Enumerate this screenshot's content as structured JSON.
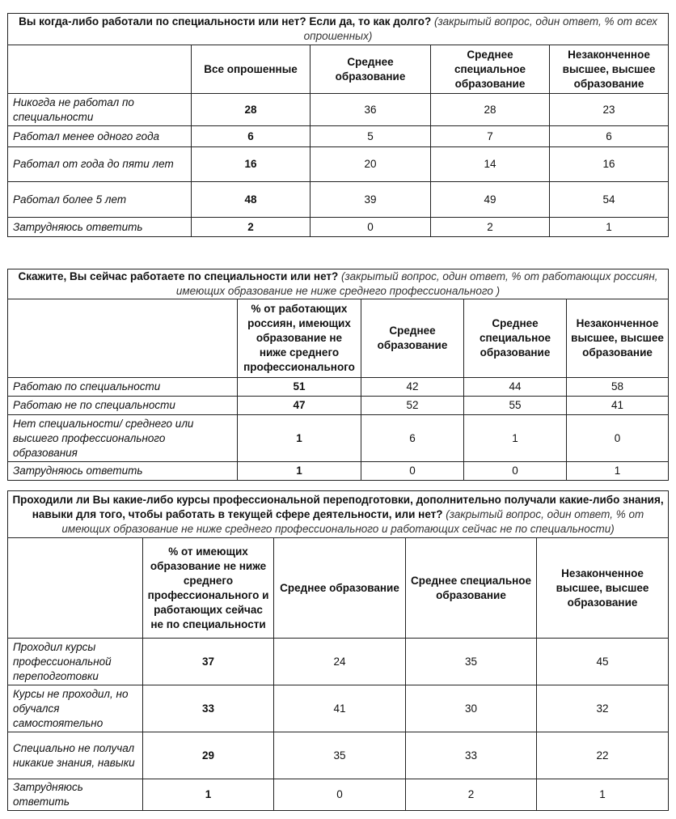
{
  "tables": [
    {
      "question": "Вы когда-либо работали по специальности или нет? Если да, то как долго?",
      "note": "(закрытый вопрос, один ответ, % от всех опрошенных)",
      "columns": [
        "",
        "Все опрошенные",
        "Среднее образование",
        "Среднее специальное образование",
        "Незаконченное высшее, высшее образование"
      ],
      "rows": [
        {
          "label": "Никогда не работал по специальности",
          "values": [
            "28",
            "36",
            "28",
            "23"
          ]
        },
        {
          "label": "Работал менее одного года",
          "values": [
            "6",
            "5",
            "7",
            "6"
          ]
        },
        {
          "label": "Работал от года до пяти лет",
          "values": [
            "16",
            "20",
            "14",
            "16"
          ]
        },
        {
          "label": "Работал более 5 лет",
          "values": [
            "48",
            "39",
            "49",
            "54"
          ]
        },
        {
          "label": "Затрудняюсь ответить",
          "values": [
            "2",
            "0",
            "2",
            "1"
          ]
        }
      ]
    },
    {
      "question": "Скажите, Вы сейчас работаете по специальности или нет?",
      "note": "(закрытый вопрос, один ответ, % от работающих россиян, имеющих образование не ниже среднего профессионального )",
      "columns": [
        "",
        "% от работающих россиян, имеющих образование не ниже среднего профессионального",
        "Среднее образование",
        "Среднее специальное образование",
        "Незаконченное высшее, высшее образование"
      ],
      "rows": [
        {
          "label": "Работаю по специальности",
          "values": [
            "51",
            "42",
            "44",
            "58"
          ]
        },
        {
          "label": "Работаю не по специальности",
          "values": [
            "47",
            "52",
            "55",
            "41"
          ]
        },
        {
          "label": "Нет специальности/ среднего или высшего профессионального образования",
          "values": [
            "1",
            "6",
            "1",
            "0"
          ]
        },
        {
          "label": "Затрудняюсь ответить",
          "values": [
            "1",
            "0",
            "0",
            "1"
          ]
        }
      ]
    },
    {
      "question": "Проходили ли Вы какие-либо курсы профессиональной переподготовки, дополнительно получали какие-либо знания, навыки для того, чтобы работать в текущей сфере деятельности, или нет?",
      "note": "(закрытый вопрос, один ответ, % от имеющих образование не ниже среднего профессионального и работающих сейчас не по специальности)",
      "columns": [
        "",
        "% от имеющих образование не ниже среднего профессионального и работающих сейчас не по специальности",
        "Среднее образование",
        "Среднее специальное образование",
        "Незаконченное высшее, высшее образование"
      ],
      "rows": [
        {
          "label": "Проходил курсы профессиональной переподготовки",
          "values": [
            "37",
            "24",
            "35",
            "45"
          ]
        },
        {
          "label": "Курсы не проходил, но обучался самостоятельно",
          "values": [
            "33",
            "41",
            "30",
            "32"
          ]
        },
        {
          "label": "Специально не получал никакие знания, навыки",
          "values": [
            "29",
            "35",
            "33",
            "22"
          ]
        },
        {
          "label": "Затрудняюсь ответить",
          "values": [
            "1",
            "0",
            "2",
            "1"
          ]
        }
      ]
    }
  ]
}
